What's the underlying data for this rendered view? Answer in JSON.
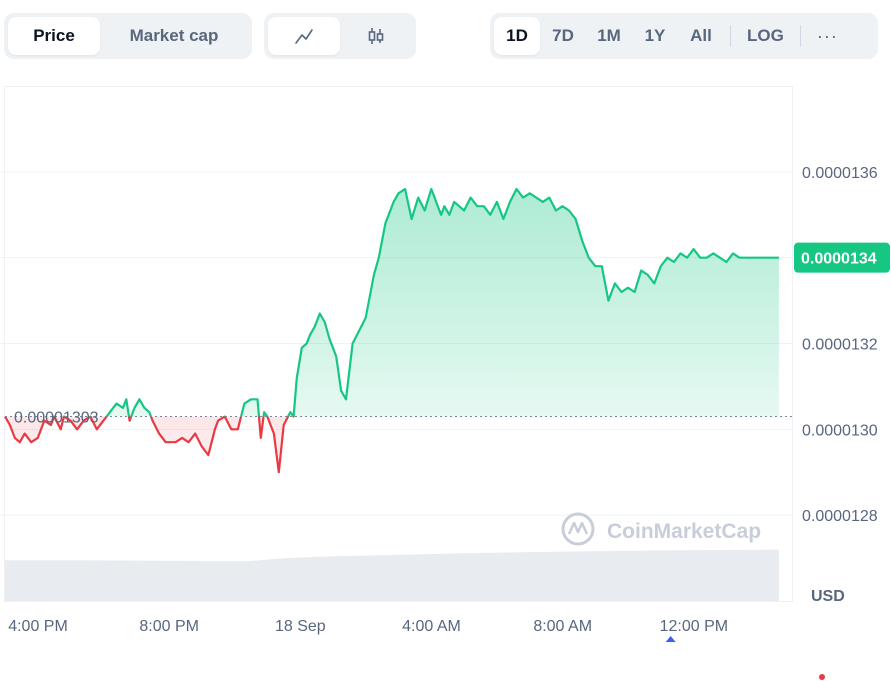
{
  "toolbar": {
    "metric_tabs": [
      {
        "label": "Price",
        "active": true
      },
      {
        "label": "Market cap",
        "active": false
      }
    ],
    "chart_type_tabs": [
      {
        "icon": "line-chart-icon",
        "active": true
      },
      {
        "icon": "candlestick-icon",
        "active": false
      }
    ],
    "range_tabs": [
      {
        "label": "1D",
        "active": true
      },
      {
        "label": "7D",
        "active": false
      },
      {
        "label": "1M",
        "active": false
      },
      {
        "label": "1Y",
        "active": false
      },
      {
        "label": "All",
        "active": false
      }
    ],
    "log_label": "LOG",
    "more_label": "···"
  },
  "watermark": "CoinMarketCap",
  "currency_label": "USD",
  "colors": {
    "up": "#16c784",
    "down": "#ea3943",
    "grid": "#eff2f5",
    "axis_text": "#58667e",
    "volume": "#e8ebef"
  },
  "chart_data": {
    "type": "area",
    "yticks": [
      "0.0000136",
      "0.0000134",
      "0.0000132",
      "0.0000130",
      "0.0000128"
    ],
    "ytick_values": [
      1.36e-05,
      1.34e-05,
      1.32e-05,
      1.3e-05,
      1.28e-05
    ],
    "ylim": [
      1.26e-05,
      1.38e-05
    ],
    "xticks": [
      "4:00 PM",
      "8:00 PM",
      "18 Sep",
      "4:00 AM",
      "8:00 AM",
      "12:00 PM"
    ],
    "xtick_hours": [
      0,
      4,
      8,
      12,
      16,
      20
    ],
    "xlim": [
      0,
      24
    ],
    "baseline": {
      "value": 1.303e-05,
      "label": "0.00001303"
    },
    "current": {
      "value": 1.34e-05,
      "label": "0.0000134"
    },
    "grid": true,
    "series": [
      {
        "x": [
          0,
          0.15,
          0.3,
          0.45,
          0.6,
          0.8,
          1.0,
          1.2,
          1.4,
          1.5,
          1.7,
          1.8,
          2.0,
          2.2,
          2.4,
          2.6,
          2.8,
          3.0,
          3.2,
          3.4,
          3.6,
          3.7,
          3.8,
          3.95,
          4.1,
          4.25,
          4.4,
          4.5,
          4.7,
          4.9,
          5.0,
          5.2,
          5.4,
          5.6,
          5.8,
          6.0,
          6.2,
          6.4,
          6.5,
          6.7,
          6.9,
          7.1,
          7.3,
          7.5,
          7.7,
          7.8,
          7.9,
          8.0,
          8.2,
          8.35,
          8.5,
          8.7,
          8.8,
          8.9,
          9.05,
          9.2,
          9.3,
          9.45,
          9.6,
          9.75,
          9.9,
          10.1,
          10.25,
          10.4,
          10.6,
          10.8,
          11.0,
          11.1,
          11.25,
          11.4,
          11.5,
          11.6,
          11.7,
          11.85,
          12.0,
          12.2,
          12.4,
          12.6,
          12.8,
          13.0,
          13.1,
          13.2,
          13.3,
          13.4,
          13.55,
          13.7,
          13.85,
          14.0,
          14.2,
          14.4,
          14.6,
          14.8,
          15.0,
          15.2,
          15.4,
          15.6,
          15.8,
          16.0,
          16.2,
          16.4,
          16.6,
          16.8,
          17.0,
          17.2,
          17.4,
          17.6,
          17.8,
          18.0,
          18.2,
          18.4,
          18.6,
          18.8,
          19.0,
          19.2,
          19.4,
          19.6,
          19.8,
          20.0,
          20.2,
          20.4,
          20.6,
          20.8,
          21.0,
          21.2,
          21.4,
          21.6,
          21.8,
          22.0,
          22.2,
          22.4,
          22.6,
          22.8,
          23.0,
          23.2,
          23.4,
          23.6
        ],
        "values": [
          1.303e-05,
          1.301e-05,
          1.298e-05,
          1.297e-05,
          1.299e-05,
          1.297e-05,
          1.298e-05,
          1.302e-05,
          1.301e-05,
          1.303e-05,
          1.3e-05,
          1.303e-05,
          1.302e-05,
          1.3e-05,
          1.302e-05,
          1.303e-05,
          1.3e-05,
          1.302e-05,
          1.304e-05,
          1.306e-05,
          1.305e-05,
          1.307e-05,
          1.302e-05,
          1.305e-05,
          1.307e-05,
          1.305e-05,
          1.304e-05,
          1.302e-05,
          1.299e-05,
          1.297e-05,
          1.297e-05,
          1.297e-05,
          1.298e-05,
          1.297e-05,
          1.299e-05,
          1.296e-05,
          1.294e-05,
          1.3e-05,
          1.302e-05,
          1.303e-05,
          1.3e-05,
          1.3e-05,
          1.306e-05,
          1.307e-05,
          1.307e-05,
          1.298e-05,
          1.304e-05,
          1.303e-05,
          1.299e-05,
          1.29e-05,
          1.301e-05,
          1.304e-05,
          1.303e-05,
          1.312e-05,
          1.319e-05,
          1.32e-05,
          1.322e-05,
          1.324e-05,
          1.327e-05,
          1.325e-05,
          1.321e-05,
          1.317e-05,
          1.309e-05,
          1.307e-05,
          1.32e-05,
          1.323e-05,
          1.326e-05,
          1.33e-05,
          1.336e-05,
          1.34e-05,
          1.344e-05,
          1.348e-05,
          1.35e-05,
          1.353e-05,
          1.355e-05,
          1.356e-05,
          1.349e-05,
          1.354e-05,
          1.351e-05,
          1.356e-05,
          1.354e-05,
          1.352e-05,
          1.35e-05,
          1.352e-05,
          1.35e-05,
          1.353e-05,
          1.352e-05,
          1.351e-05,
          1.354e-05,
          1.352e-05,
          1.352e-05,
          1.35e-05,
          1.353e-05,
          1.349e-05,
          1.353e-05,
          1.356e-05,
          1.354e-05,
          1.355e-05,
          1.354e-05,
          1.353e-05,
          1.354e-05,
          1.351e-05,
          1.352e-05,
          1.351e-05,
          1.349e-05,
          1.344e-05,
          1.34e-05,
          1.338e-05,
          1.338e-05,
          1.33e-05,
          1.334e-05,
          1.332e-05,
          1.333e-05,
          1.332e-05,
          1.337e-05,
          1.336e-05,
          1.334e-05,
          1.338e-05,
          1.34e-05,
          1.339e-05,
          1.341e-05,
          1.34e-05,
          1.342e-05,
          1.34e-05,
          1.34e-05,
          1.341e-05,
          1.34e-05,
          1.339e-05,
          1.341e-05,
          1.34e-05,
          1.34e-05,
          1.34e-05,
          1.34e-05,
          1.34e-05,
          1.34e-05,
          1.34e-05
        ]
      }
    ],
    "volume": {
      "x": [
        0,
        2,
        4,
        6,
        7.5,
        8.5,
        10,
        12,
        14,
        16,
        18,
        20,
        22,
        23.6
      ],
      "values": [
        1.0,
        1.0,
        0.99,
        0.98,
        0.98,
        1.05,
        1.1,
        1.13,
        1.17,
        1.2,
        1.22,
        1.24,
        1.25,
        1.26
      ]
    },
    "cursor_marker": {
      "x_hour": 20.3,
      "color": "#3861fb"
    }
  }
}
